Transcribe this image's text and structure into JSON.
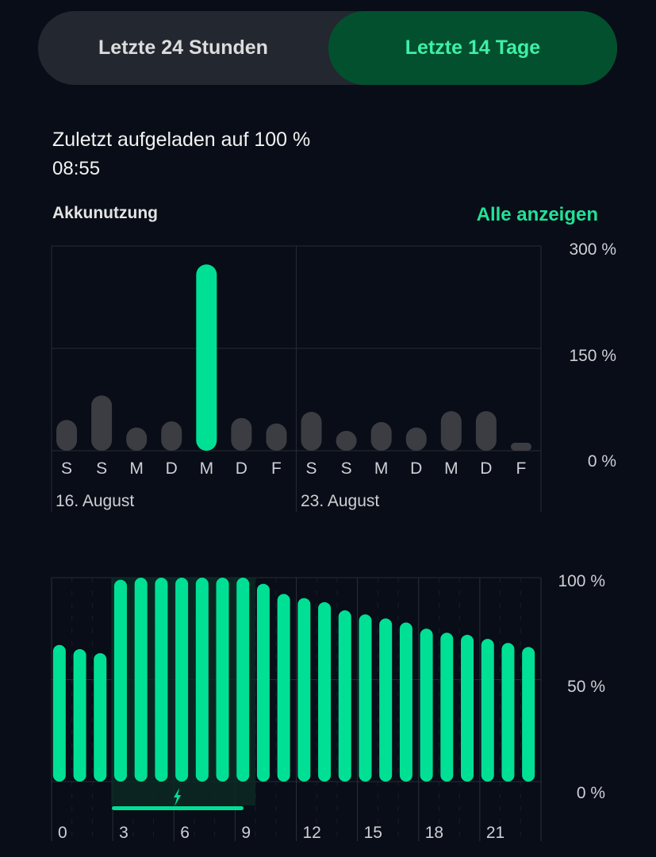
{
  "tabs": [
    {
      "label": "Letzte 24 Stunden",
      "active": false
    },
    {
      "label": "Letzte 14 Tage",
      "active": true
    }
  ],
  "last_charged": {
    "text": "Zuletzt aufgeladen auf 100 %",
    "time": "08:55"
  },
  "usage": {
    "title": "Akkunutzung",
    "show_all": "Alle anzeigen"
  },
  "colors": {
    "accent": "#00e095",
    "bar_gray": "#3c3d42",
    "bg": "#080d17"
  },
  "chart_data": [
    {
      "type": "bar",
      "title": "Akkunutzung",
      "categories": [
        "S",
        "S",
        "M",
        "D",
        "M",
        "D",
        "F",
        "S",
        "S",
        "M",
        "D",
        "M",
        "D",
        "F"
      ],
      "values": [
        45,
        81,
        34,
        43,
        273,
        48,
        40,
        57,
        29,
        42,
        34,
        58,
        58,
        10
      ],
      "highlight_index": 4,
      "week_labels": [
        "16. August",
        "23. August"
      ],
      "yticks": [
        "300 %",
        "150 %",
        "0 %"
      ],
      "ylim": [
        0,
        300
      ]
    },
    {
      "type": "bar",
      "categories": [
        "0",
        "1",
        "2",
        "3",
        "4",
        "5",
        "6",
        "7",
        "8",
        "9",
        "10",
        "11",
        "12",
        "13",
        "14",
        "15",
        "16",
        "17",
        "18",
        "19",
        "20",
        "21",
        "22",
        "23"
      ],
      "values": [
        67,
        65,
        63,
        99,
        100,
        100,
        100,
        100,
        100,
        100,
        97,
        92,
        90,
        88,
        84,
        82,
        80,
        78,
        75,
        73,
        72,
        70,
        68,
        66
      ],
      "xticks": [
        "0",
        "3",
        "6",
        "9",
        "12",
        "15",
        "18",
        "21"
      ],
      "yticks": [
        "100 %",
        "50 %",
        "0 %"
      ],
      "ylim": [
        0,
        100
      ],
      "charging_hours": [
        3,
        9
      ]
    }
  ]
}
